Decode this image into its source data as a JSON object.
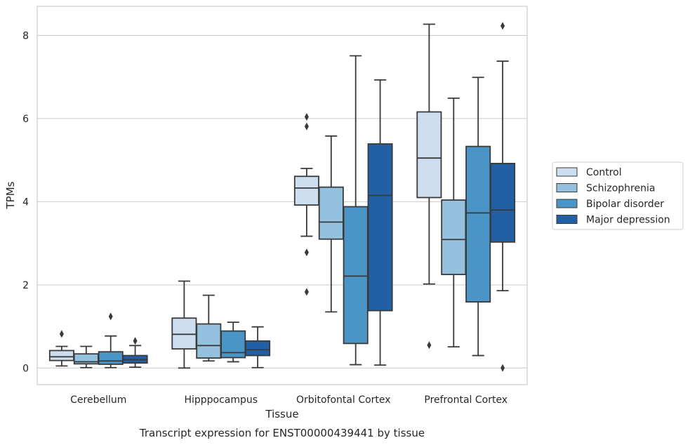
{
  "caption": "Transcript expression for ENST00000439441 by tissue",
  "colors": {
    "Control": "#cddeef",
    "Schizophrenia": "#94c1de",
    "Bipolar disorder": "#4b94c6",
    "Major depression": "#2260a6",
    "line": "#3a3a3a",
    "grid": "#cccccc",
    "frame": "#cccccc"
  },
  "chart_data": {
    "type": "box",
    "title": "",
    "xlabel": "Tissue",
    "ylabel": "TPMs",
    "ylim": [
      -0.4,
      8.7
    ],
    "yticks": [
      0,
      2,
      4,
      6,
      8
    ],
    "grid": "horizontal",
    "legend_position": "right",
    "categories": [
      "Cerebellum",
      "Hipppocampus",
      "Orbitofontal Cortex",
      "Prefrontal Cortex"
    ],
    "series": [
      {
        "name": "Control",
        "boxes": [
          {
            "whislo": 0.05,
            "q1": 0.18,
            "med": 0.27,
            "q3": 0.42,
            "whishi": 0.52,
            "fliers": [
              0.82
            ]
          },
          {
            "whislo": 0.0,
            "q1": 0.46,
            "med": 0.81,
            "q3": 1.2,
            "whishi": 2.09,
            "fliers": []
          },
          {
            "whislo": 3.17,
            "q1": 3.92,
            "med": 4.33,
            "q3": 4.61,
            "whislo_dummy": 0,
            "whishi": 4.8,
            "fliers": [
              6.04,
              5.81,
              2.78,
              1.83
            ]
          },
          {
            "whislo": 2.02,
            "q1": 4.1,
            "med": 5.05,
            "q3": 6.16,
            "whishi": 8.27,
            "fliers": [
              0.55
            ]
          }
        ]
      },
      {
        "name": "Schizophrenia",
        "boxes": [
          {
            "whislo": 0.01,
            "q1": 0.1,
            "med": 0.15,
            "q3": 0.34,
            "whishi": 0.52,
            "fliers": []
          },
          {
            "whislo": 0.17,
            "q1": 0.24,
            "med": 0.54,
            "q3": 1.06,
            "whishi": 1.75,
            "fliers": []
          },
          {
            "whislo": 1.35,
            "q1": 3.1,
            "med": 3.51,
            "q3": 4.35,
            "whishi": 5.58,
            "fliers": []
          },
          {
            "whislo": 0.51,
            "q1": 2.25,
            "med": 3.09,
            "q3": 4.04,
            "whishi": 6.49,
            "fliers": []
          }
        ]
      },
      {
        "name": "Bipolar disorder",
        "boxes": [
          {
            "whislo": 0.01,
            "q1": 0.09,
            "med": 0.17,
            "q3": 0.39,
            "whishi": 0.77,
            "fliers": [
              1.24
            ]
          },
          {
            "whislo": 0.15,
            "q1": 0.25,
            "med": 0.37,
            "q3": 0.89,
            "whishi": 1.1,
            "fliers": []
          },
          {
            "whislo": 0.08,
            "q1": 0.59,
            "med": 2.21,
            "q3": 3.88,
            "whishi": 7.51,
            "fliers": []
          },
          {
            "whislo": 0.3,
            "q1": 1.59,
            "med": 3.73,
            "q3": 5.33,
            "whishi": 6.99,
            "fliers": []
          }
        ]
      },
      {
        "name": "Major depression",
        "boxes": [
          {
            "whislo": 0.02,
            "q1": 0.12,
            "med": 0.2,
            "q3": 0.3,
            "whishi": 0.54,
            "fliers": [
              0.65
            ]
          },
          {
            "whislo": 0.01,
            "q1": 0.3,
            "med": 0.44,
            "q3": 0.65,
            "whishi": 0.99,
            "fliers": []
          },
          {
            "whislo": 0.07,
            "q1": 1.38,
            "med": 4.15,
            "q3": 5.39,
            "whishi": 6.93,
            "fliers": []
          },
          {
            "whislo": 1.86,
            "q1": 3.03,
            "med": 3.8,
            "q3": 4.92,
            "whishi": 7.38,
            "fliers": [
              8.23,
              0.0
            ]
          }
        ]
      }
    ]
  }
}
